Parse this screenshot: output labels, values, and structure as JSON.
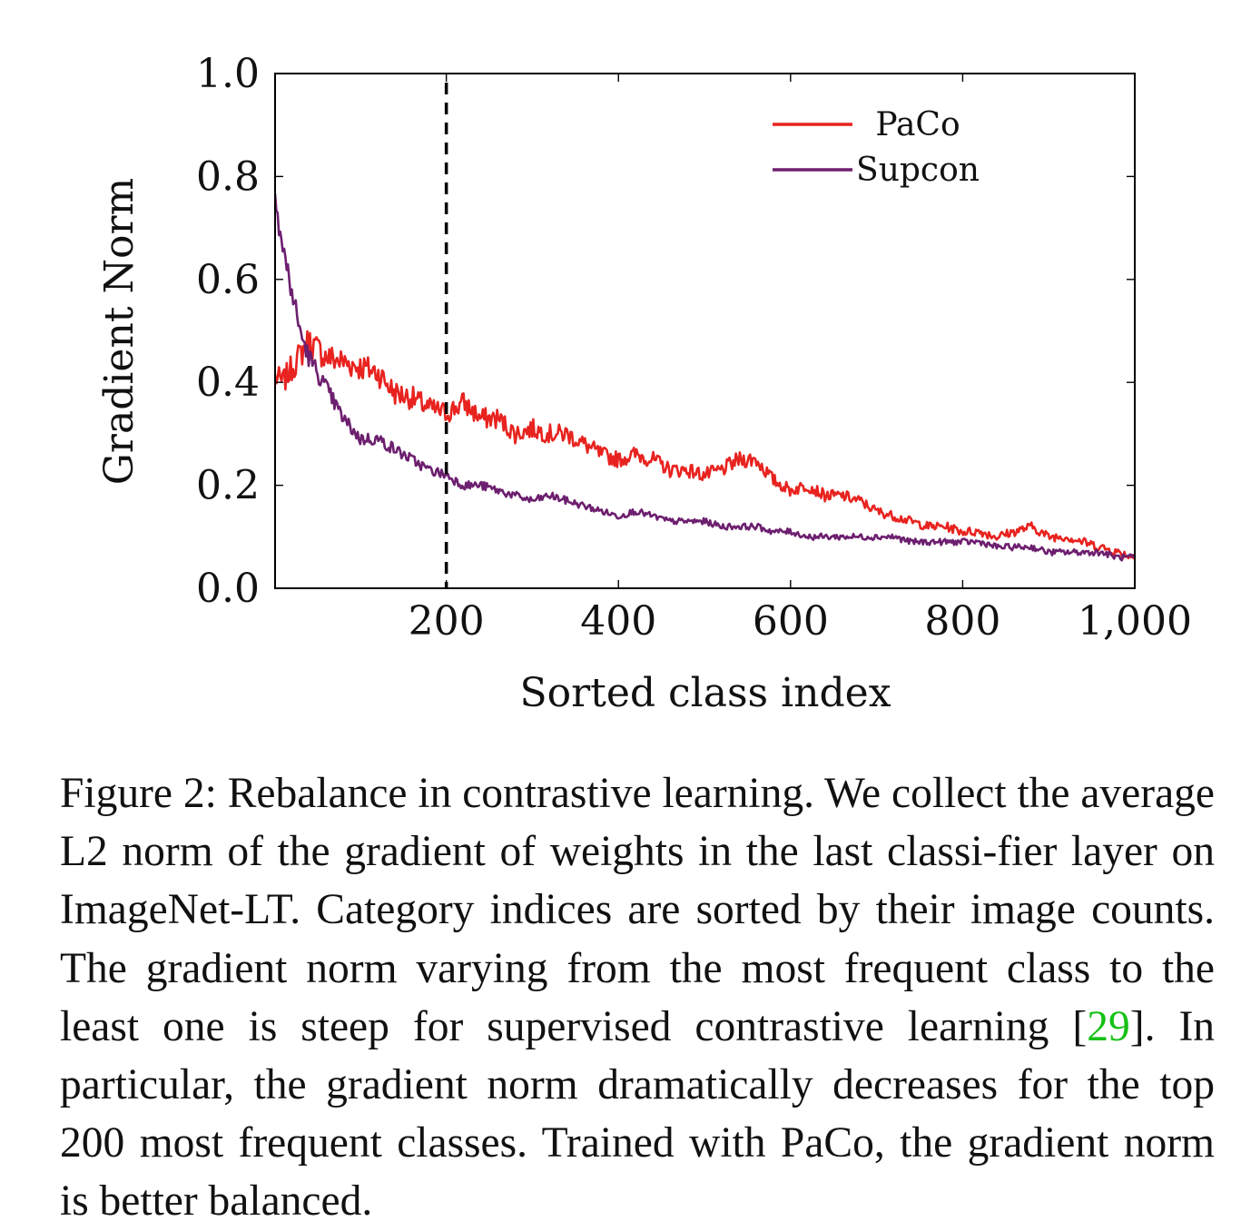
{
  "chart_data": {
    "type": "line",
    "title": "",
    "xlabel": "Sorted class index",
    "ylabel": "Gradient Norm",
    "xlim": [
      1,
      1000
    ],
    "ylim": [
      0,
      1
    ],
    "x_ticks": [
      "200",
      "400",
      "600",
      "800",
      "1,000"
    ],
    "y_ticks": [
      "0.0",
      "0.2",
      "0.4",
      "0.6",
      "0.8",
      "1.0"
    ],
    "reference_line": {
      "x": 200,
      "style": "dashed"
    },
    "legend_position": "top-right",
    "grid": false,
    "series": [
      {
        "name": "PaCo",
        "color": "#e8231f",
        "x": [
          1,
          10,
          25,
          40,
          60,
          80,
          100,
          120,
          140,
          160,
          180,
          200,
          220,
          240,
          260,
          280,
          300,
          320,
          340,
          360,
          380,
          400,
          420,
          440,
          460,
          480,
          500,
          520,
          540,
          560,
          580,
          600,
          620,
          640,
          660,
          680,
          700,
          720,
          740,
          760,
          780,
          800,
          820,
          840,
          860,
          880,
          900,
          920,
          940,
          960,
          980,
          1000
        ],
        "values": [
          0.41,
          0.4,
          0.44,
          0.48,
          0.45,
          0.44,
          0.43,
          0.42,
          0.38,
          0.37,
          0.35,
          0.34,
          0.36,
          0.33,
          0.33,
          0.3,
          0.31,
          0.3,
          0.3,
          0.28,
          0.26,
          0.25,
          0.26,
          0.25,
          0.23,
          0.23,
          0.22,
          0.23,
          0.25,
          0.25,
          0.21,
          0.19,
          0.2,
          0.18,
          0.18,
          0.17,
          0.15,
          0.14,
          0.13,
          0.12,
          0.12,
          0.11,
          0.11,
          0.1,
          0.11,
          0.12,
          0.1,
          0.1,
          0.09,
          0.08,
          0.07,
          0.06
        ]
      },
      {
        "name": "Supcon",
        "color": "#6d1f6f",
        "x": [
          1,
          5,
          10,
          20,
          30,
          40,
          60,
          80,
          100,
          120,
          140,
          160,
          180,
          200,
          220,
          240,
          260,
          280,
          300,
          320,
          340,
          360,
          380,
          400,
          420,
          440,
          460,
          480,
          500,
          520,
          540,
          560,
          580,
          600,
          620,
          640,
          660,
          680,
          700,
          720,
          740,
          760,
          780,
          800,
          820,
          840,
          860,
          880,
          900,
          920,
          940,
          960,
          980,
          1000
        ],
        "values": [
          0.8,
          0.71,
          0.66,
          0.58,
          0.5,
          0.45,
          0.39,
          0.33,
          0.29,
          0.29,
          0.27,
          0.25,
          0.23,
          0.22,
          0.2,
          0.2,
          0.19,
          0.18,
          0.17,
          0.18,
          0.17,
          0.16,
          0.15,
          0.14,
          0.15,
          0.14,
          0.13,
          0.13,
          0.13,
          0.12,
          0.12,
          0.12,
          0.11,
          0.11,
          0.1,
          0.1,
          0.1,
          0.1,
          0.1,
          0.1,
          0.09,
          0.09,
          0.09,
          0.09,
          0.09,
          0.08,
          0.08,
          0.08,
          0.07,
          0.07,
          0.07,
          0.07,
          0.06,
          0.06
        ]
      }
    ]
  },
  "caption": {
    "label": "Figure 2:",
    "text_before_ref": "Rebalance in contrastive learning.  We collect the average L2 norm of the gradient of weights in the last classi-fier layer on ImageNet-LT. Category indices are sorted by their image counts.  The gradient norm varying from the most frequent class to the least one is steep for supervised contrastive learning [",
    "ref": "29",
    "text_after_ref": "].  In particular, the gradient norm dramatically decreases for the top 200 most frequent classes. Trained with PaCo, the gradient norm is better balanced."
  }
}
